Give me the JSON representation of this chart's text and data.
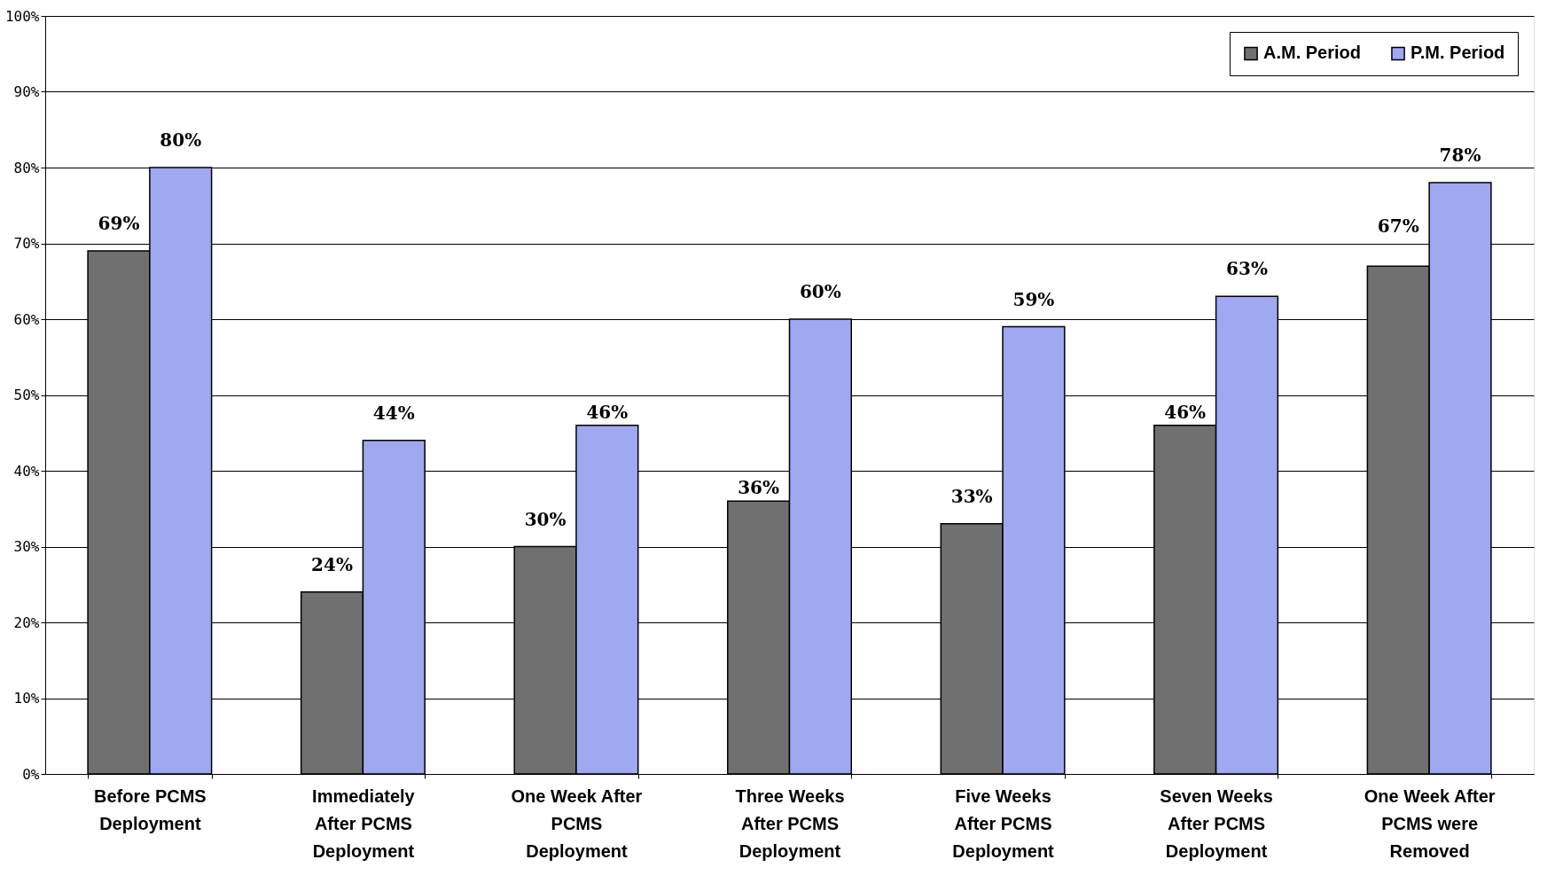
{
  "chart_data": {
    "type": "bar",
    "categories": [
      "Before PCMS Deployment",
      "Immediately After PCMS Deployment",
      "One Week After PCMS Deployment",
      "Three Weeks After PCMS Deployment",
      "Five Weeks After PCMS Deployment",
      "Seven Weeks After PCMS Deployment",
      "One Week After PCMS were Removed"
    ],
    "series": [
      {
        "name": "A.M. Period",
        "color": "#707070",
        "values": [
          69,
          24,
          30,
          36,
          33,
          46,
          67
        ],
        "value_labels": [
          "69%",
          "24%",
          "30%",
          "36%",
          "33%",
          "46%",
          "67%"
        ]
      },
      {
        "name": "P.M. Period",
        "color": "#a0a8f0",
        "values": [
          80,
          44,
          46,
          60,
          59,
          63,
          78
        ],
        "value_labels": [
          "80%",
          "44%",
          "46%",
          "60%",
          "59%",
          "63%",
          "78%"
        ]
      }
    ],
    "ylim": [
      0,
      100
    ],
    "yticks": [
      {
        "value": 0,
        "label": "0%"
      },
      {
        "value": 10,
        "label": "10%"
      },
      {
        "value": 20,
        "label": "20%"
      },
      {
        "value": 30,
        "label": "30%"
      },
      {
        "value": 40,
        "label": "40%"
      },
      {
        "value": 50,
        "label": "50%"
      },
      {
        "value": 60,
        "label": "60%"
      },
      {
        "value": 70,
        "label": "70%"
      },
      {
        "value": 80,
        "label": "80%"
      },
      {
        "value": 90,
        "label": "90%"
      },
      {
        "value": 100,
        "label": "100%"
      }
    ],
    "grid": "y",
    "legend": "top right"
  }
}
